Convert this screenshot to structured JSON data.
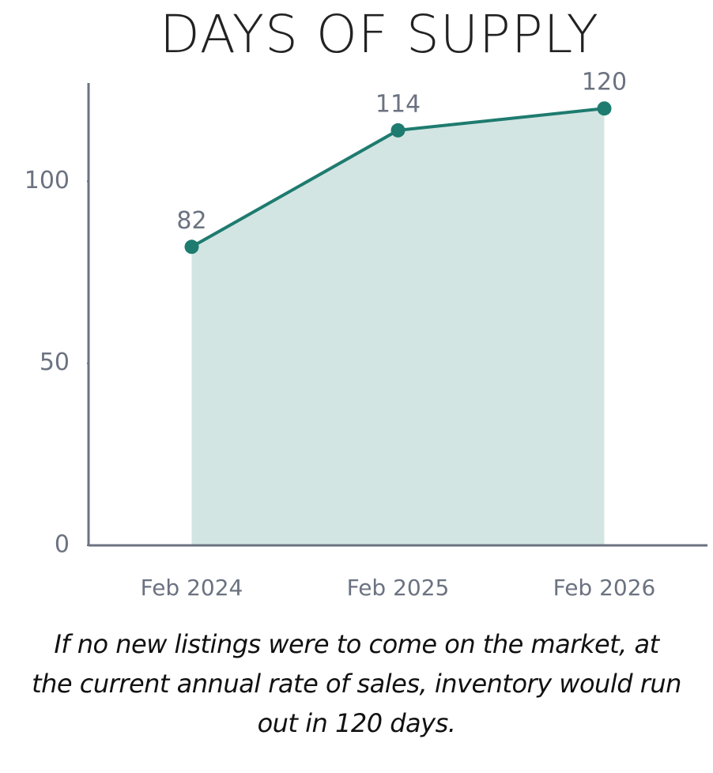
{
  "chart_data": {
    "type": "area",
    "title": "DAYS OF SUPPLY",
    "categories": [
      "Feb 2024",
      "Feb 2025",
      "Feb 2026"
    ],
    "values": [
      82,
      114,
      120
    ],
    "color": "#1e7b6f",
    "fill_color": "#d2e5e2",
    "ylim": [
      0,
      127
    ],
    "yticks": [
      0,
      50,
      100
    ],
    "annotation": "If no new listings were to come on the market, at the current annual rate of sales, inventory would run out in 120 days."
  }
}
